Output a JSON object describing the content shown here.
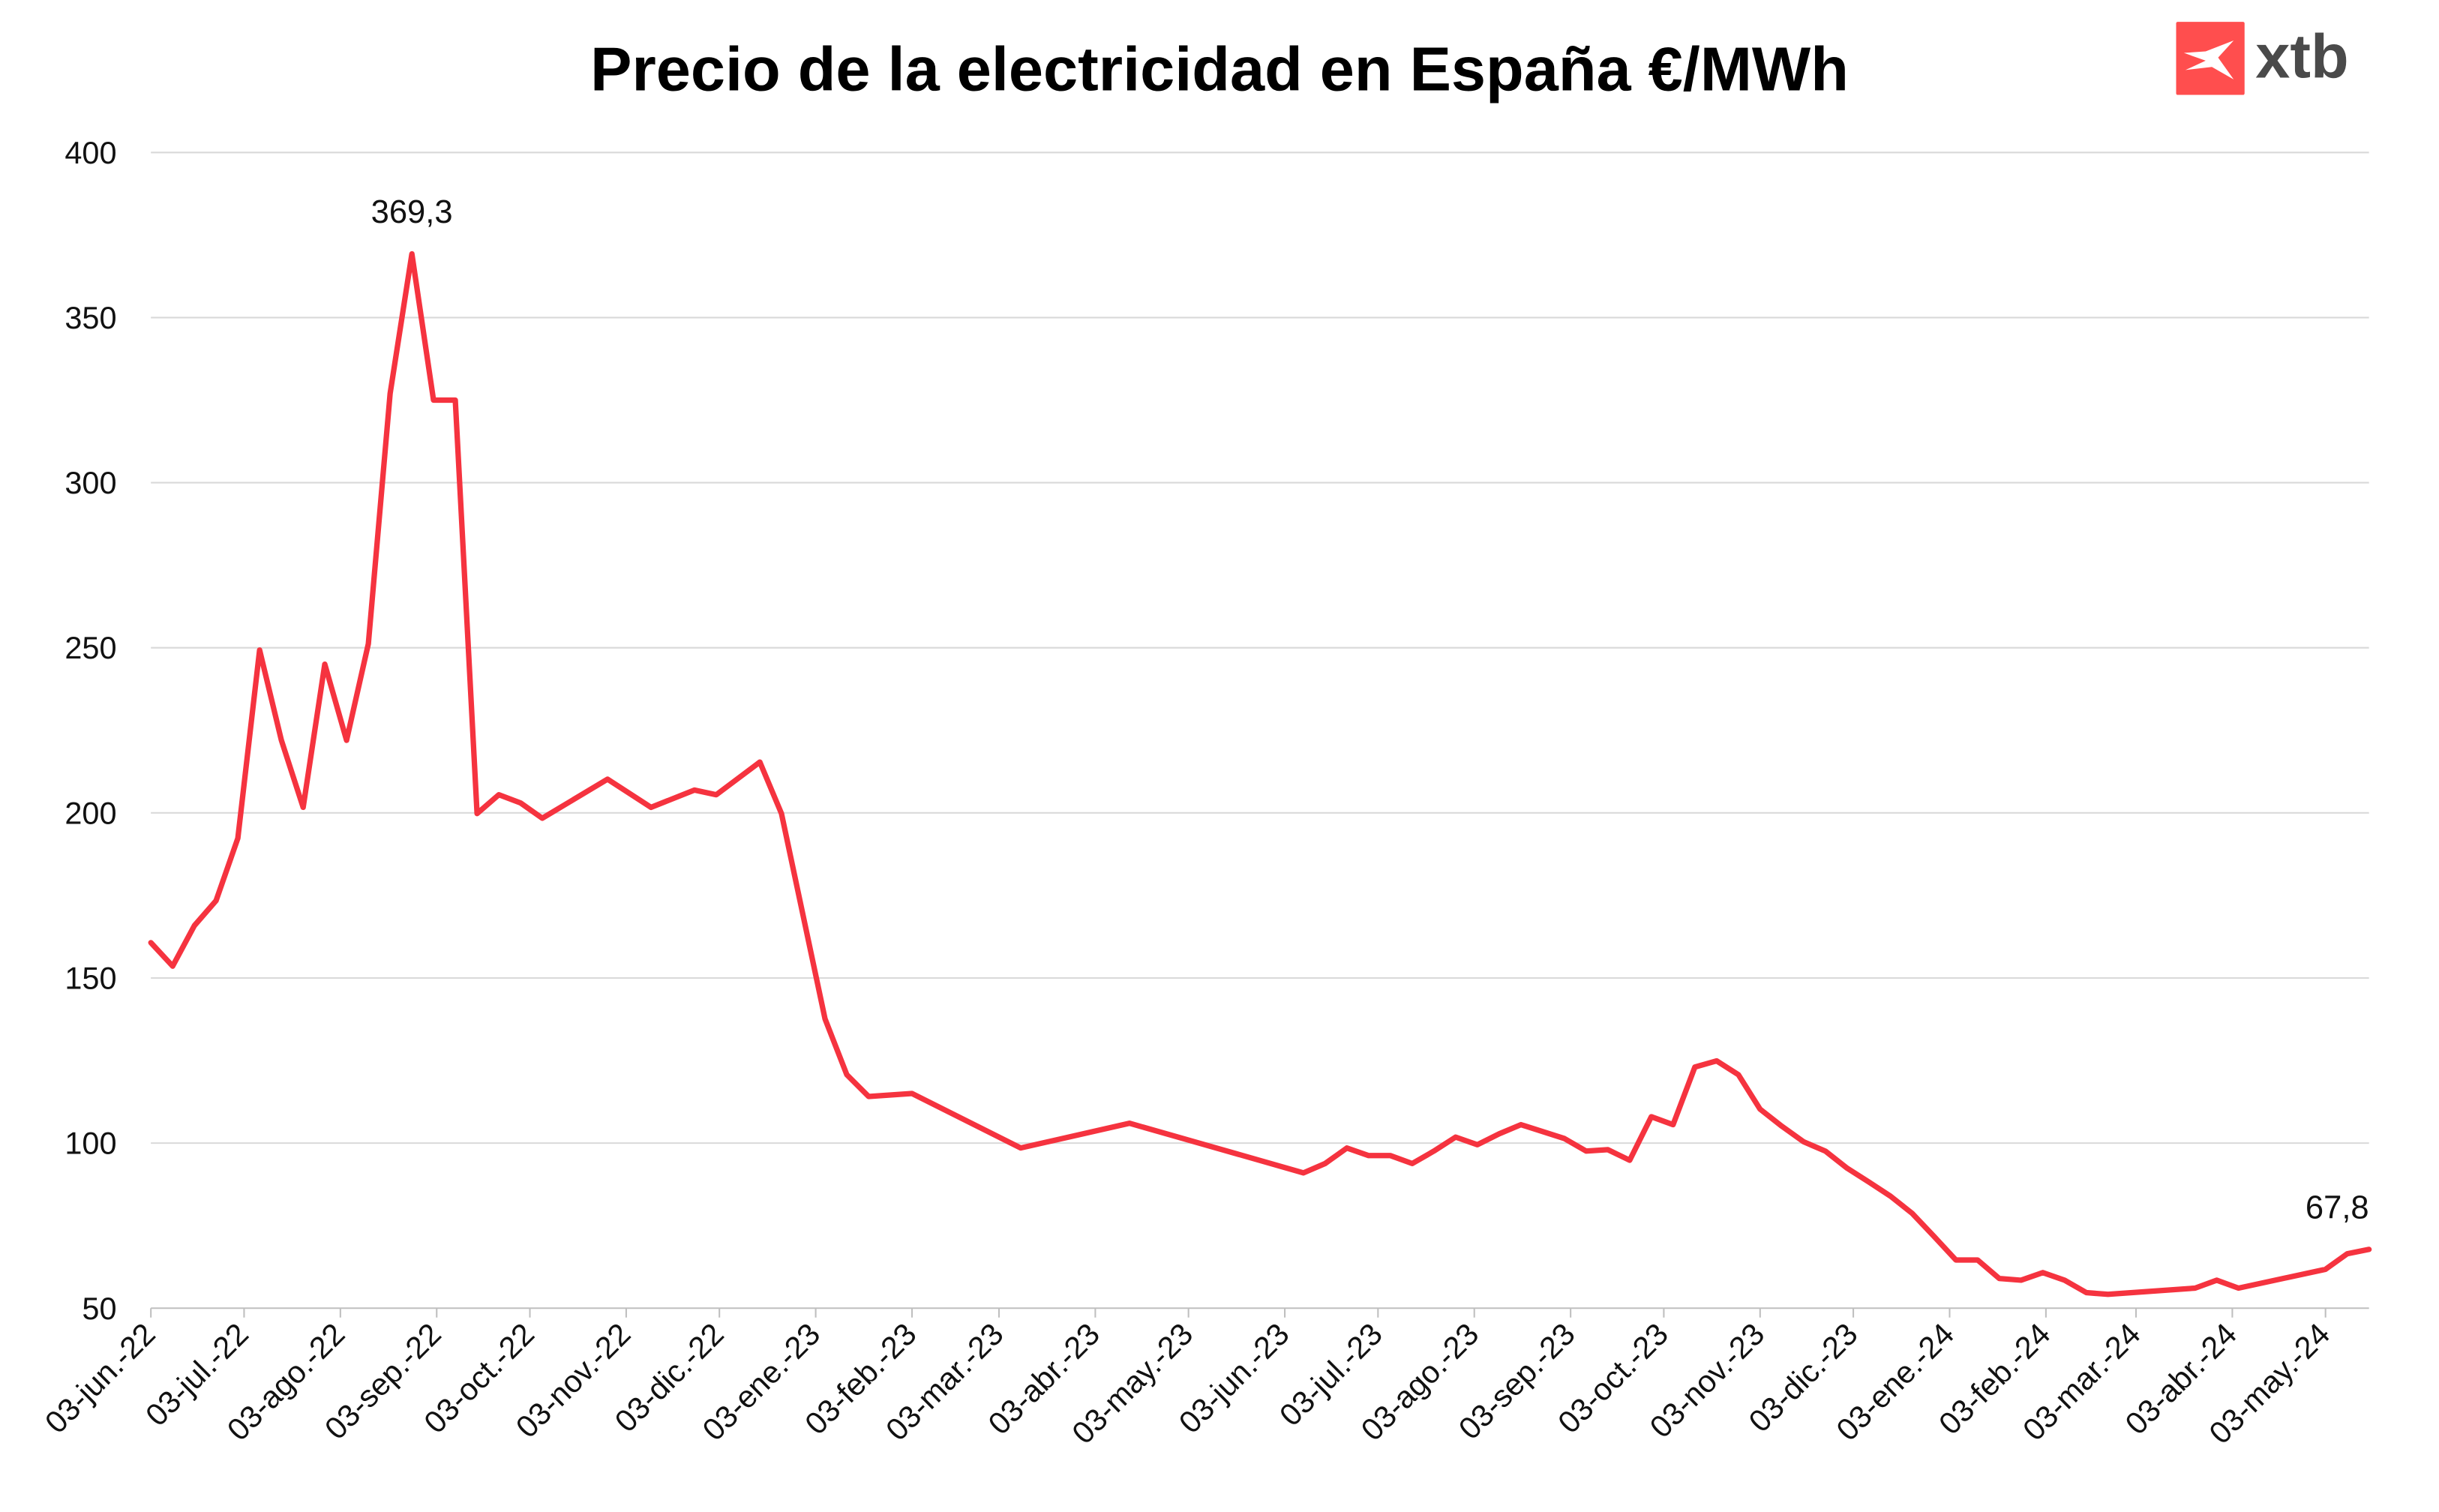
{
  "brand": {
    "logo_text": "xtb",
    "logo_color": "#ff4e4e"
  },
  "chart_data": {
    "type": "line",
    "title": "Precio de la electricidad en España €/MWh",
    "xlabel": "",
    "ylabel": "",
    "ylim": [
      50,
      400
    ],
    "yticks": [
      50,
      100,
      150,
      200,
      250,
      300,
      350,
      400
    ],
    "ytick_labels": [
      "50",
      "100",
      "150",
      "200",
      "250",
      "300",
      "350",
      "400"
    ],
    "xlim": [
      "2022-06-03",
      "2024-05-17"
    ],
    "xticks": [
      "2022-06-03",
      "2022-07-03",
      "2022-08-03",
      "2022-09-03",
      "2022-10-03",
      "2022-11-03",
      "2022-12-03",
      "2023-01-03",
      "2023-02-03",
      "2023-03-03",
      "2023-04-03",
      "2023-05-03",
      "2023-06-03",
      "2023-07-03",
      "2023-08-03",
      "2023-09-03",
      "2023-10-03",
      "2023-11-03",
      "2023-12-03",
      "2024-01-03",
      "2024-02-03",
      "2024-03-03",
      "2024-04-03",
      "2024-05-03"
    ],
    "xtick_labels": [
      "03-jun.-22",
      "03-jul.-22",
      "03-ago.-22",
      "03-sep.-22",
      "03-oct.-22",
      "03-nov.-22",
      "03-dic.-22",
      "03-ene.-23",
      "03-feb.-23",
      "03-mar.-23",
      "03-abr.-23",
      "03-may.-23",
      "03-jun.-23",
      "03-jul.-23",
      "03-ago.-23",
      "03-sep.-23",
      "03-oct.-23",
      "03-nov.-23",
      "03-dic.-23",
      "03-ene.-24",
      "03-feb.-24",
      "03-mar.-24",
      "03-abr.-24",
      "03-may.-24"
    ],
    "grid": true,
    "line_color": "#f5333f",
    "series": [
      {
        "x": [
          "2022-06-03",
          "2022-06-10",
          "2022-06-17",
          "2022-06-24",
          "2022-07-01",
          "2022-07-08",
          "2022-07-15",
          "2022-07-22",
          "2022-07-29",
          "2022-08-05",
          "2022-08-12",
          "2022-08-19",
          "2022-08-26",
          "2022-09-02",
          "2022-09-09",
          "2022-09-16",
          "2022-09-23",
          "2022-09-30",
          "2022-10-07",
          "2022-10-28",
          "2022-11-11",
          "2022-11-25",
          "2022-12-02",
          "2022-12-16",
          "2022-12-23",
          "2023-01-06",
          "2023-01-13",
          "2023-01-20",
          "2023-02-03",
          "2023-03-10",
          "2023-04-14",
          "2023-06-09",
          "2023-06-16",
          "2023-06-23",
          "2023-06-30",
          "2023-07-07",
          "2023-07-14",
          "2023-07-21",
          "2023-07-28",
          "2023-08-04",
          "2023-08-11",
          "2023-08-18",
          "2023-09-01",
          "2023-09-08",
          "2023-09-15",
          "2023-09-22",
          "2023-09-29",
          "2023-10-06",
          "2023-10-13",
          "2023-10-20",
          "2023-10-27",
          "2023-11-03",
          "2023-11-10",
          "2023-11-17",
          "2023-11-24",
          "2023-12-01",
          "2023-12-08",
          "2023-12-15",
          "2023-12-22",
          "2023-12-29",
          "2024-01-05",
          "2024-01-12",
          "2024-01-19",
          "2024-01-26",
          "2024-02-02",
          "2024-02-09",
          "2024-02-16",
          "2024-02-23",
          "2024-03-22",
          "2024-03-29",
          "2024-04-05",
          "2024-05-03",
          "2024-05-10",
          "2024-05-17"
        ],
        "values": [
          160.7,
          153.6,
          165.9,
          173.4,
          192.3,
          249.3,
          222,
          201.7,
          245,
          222,
          251.2,
          327,
          369.3,
          325,
          325,
          199.8,
          205.5,
          203,
          198.4,
          210.2,
          201.7,
          206.9,
          205.5,
          215.4,
          199.8,
          137.6,
          120.7,
          114.1,
          115,
          98.5,
          106,
          91,
          93.8,
          98.5,
          96.2,
          96.2,
          93.8,
          97.6,
          101.8,
          99.5,
          102.8,
          105.6,
          101.4,
          97.6,
          98,
          94.8,
          108,
          105.6,
          123,
          124.9,
          120.7,
          110.3,
          105.1,
          100.4,
          97.6,
          92.4,
          88.2,
          83.9,
          78.7,
          71.7,
          64.6,
          64.6,
          59,
          58.5,
          60.8,
          58.5,
          54.7,
          54.2,
          56.1,
          58.5,
          56.1,
          61.8,
          66.5,
          67.8
        ]
      }
    ],
    "annotations": [
      {
        "x": "2022-08-26",
        "label": "369,3"
      },
      {
        "x": "2024-05-17",
        "label": "67,8"
      }
    ]
  }
}
